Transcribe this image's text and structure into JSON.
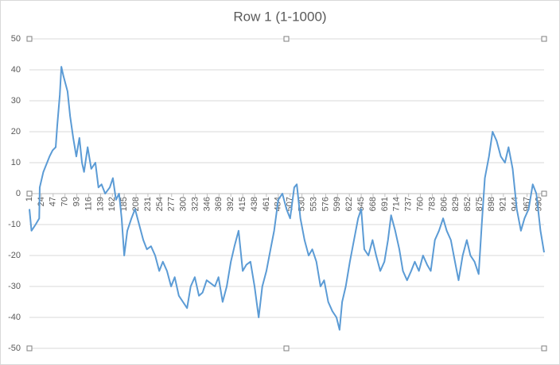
{
  "chart_data": {
    "type": "line",
    "title": "Row 1 (1-1000)",
    "x": [
      1,
      5,
      13,
      20,
      21,
      28,
      40,
      46,
      52,
      55,
      60,
      63,
      67,
      75,
      80,
      86,
      92,
      98,
      103,
      107,
      114,
      121,
      129,
      135,
      141,
      148,
      157,
      163,
      169,
      175,
      180,
      185,
      191,
      199,
      206,
      214,
      222,
      229,
      237,
      245,
      253,
      260,
      268,
      276,
      283,
      291,
      299,
      307,
      314,
      322,
      330,
      337,
      345,
      353,
      361,
      368,
      376,
      384,
      392,
      399,
      407,
      415,
      422,
      430,
      438,
      446,
      453,
      461,
      469,
      476,
      484,
      492,
      500,
      507,
      515,
      520,
      527,
      535,
      543,
      550,
      558,
      566,
      573,
      581,
      589,
      597,
      603,
      608,
      615,
      623,
      631,
      639,
      645,
      651,
      659,
      667,
      674,
      682,
      690,
      697,
      703,
      711,
      719,
      726,
      734,
      742,
      749,
      757,
      765,
      773,
      780,
      788,
      796,
      804,
      811,
      819,
      827,
      834,
      842,
      850,
      857,
      865,
      873,
      879,
      885,
      893,
      900,
      908,
      916,
      924,
      931,
      939,
      947,
      955,
      962,
      970,
      978,
      985,
      993,
      1000
    ],
    "values": [
      -5,
      -12,
      -10,
      -8,
      2,
      7,
      12,
      14,
      15,
      22,
      32,
      41,
      38,
      33,
      25,
      18,
      12,
      18,
      10,
      7,
      15,
      8,
      10,
      2,
      3,
      0,
      2,
      5,
      -2,
      0,
      -8,
      -20,
      -12,
      -8,
      -5,
      -10,
      -15,
      -18,
      -17,
      -20,
      -25,
      -22,
      -25,
      -30,
      -27,
      -33,
      -35,
      -37,
      -30,
      -27,
      -33,
      -32,
      -28,
      -29,
      -30,
      -27,
      -35,
      -30,
      -22,
      -17,
      -12,
      -25,
      -23,
      -22,
      -30,
      -40,
      -30,
      -25,
      -18,
      -12,
      -2,
      0,
      -5,
      -8,
      2,
      3,
      -8,
      -15,
      -20,
      -18,
      -22,
      -30,
      -28,
      -35,
      -38,
      -40,
      -44,
      -35,
      -30,
      -22,
      -15,
      -8,
      -5,
      -18,
      -20,
      -15,
      -20,
      -25,
      -22,
      -15,
      -7,
      -12,
      -18,
      -25,
      -28,
      -25,
      -22,
      -25,
      -20,
      -23,
      -25,
      -15,
      -12,
      -8,
      -12,
      -15,
      -22,
      -28,
      -20,
      -15,
      -20,
      -22,
      -26,
      -10,
      5,
      12,
      20,
      17,
      12,
      10,
      15,
      8,
      -5,
      -12,
      -8,
      -5,
      3,
      0,
      -12,
      -19
    ],
    "color": "#5b9bd5",
    "xlim": [
      1,
      1000
    ],
    "xticks": [
      1,
      24,
      47,
      70,
      93,
      116,
      139,
      162,
      185,
      208,
      231,
      254,
      277,
      300,
      323,
      346,
      369,
      392,
      415,
      438,
      461,
      484,
      507,
      530,
      553,
      576,
      599,
      622,
      645,
      668,
      691,
      714,
      737,
      760,
      783,
      806,
      829,
      852,
      875,
      898,
      921,
      944,
      967,
      990
    ],
    "ylim": [
      -50,
      50
    ],
    "yticks": [
      -50,
      -40,
      -30,
      -20,
      -10,
      0,
      10,
      20,
      30,
      40,
      50
    ],
    "grid": true
  }
}
